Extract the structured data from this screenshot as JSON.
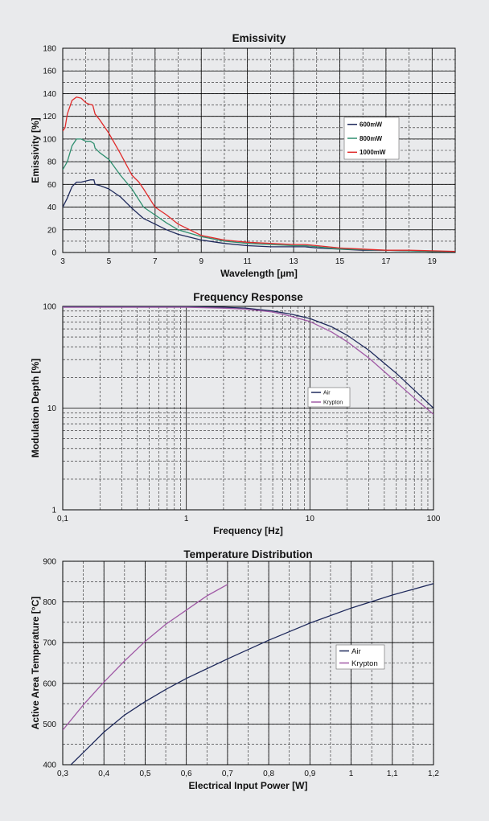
{
  "chart_data": [
    {
      "type": "line",
      "title": "Emissivity",
      "xlabel": "Wavelength [µm]",
      "ylabel": "Emissivity [%]",
      "xlim": [
        3,
        20
      ],
      "ylim": [
        0,
        180
      ],
      "xticks": [
        3,
        5,
        7,
        9,
        11,
        13,
        15,
        17,
        19
      ],
      "xticklabels": [
        "3",
        "5",
        "7",
        "9",
        "11",
        "13",
        "15",
        "17",
        "19"
      ],
      "yticks": [
        0,
        20,
        40,
        60,
        80,
        100,
        120,
        140,
        160,
        180
      ],
      "yticklabels": [
        "0",
        "20",
        "40",
        "60",
        "80",
        "100",
        "120",
        "140",
        "160",
        "180"
      ],
      "grid": true,
      "legend": "right",
      "series": [
        {
          "name": "600mW",
          "color": "#1f2a5c",
          "x": [
            3,
            3.2,
            3.4,
            3.6,
            3.8,
            4.0,
            4.2,
            4.35,
            4.4,
            4.6,
            5,
            5.5,
            6,
            6.5,
            7,
            7.5,
            8,
            9,
            10,
            11,
            12,
            13,
            13.5,
            14,
            15,
            16,
            17,
            18,
            19,
            20
          ],
          "y": [
            40,
            48,
            58,
            62,
            62,
            63,
            64,
            64,
            60,
            59,
            56,
            49,
            39,
            30,
            25,
            20,
            16,
            11,
            8,
            6,
            5,
            5,
            5,
            4,
            3,
            2,
            2,
            1.5,
            1,
            1
          ]
        },
        {
          "name": "800mW",
          "color": "#2f8f6f",
          "x": [
            3,
            3.2,
            3.4,
            3.6,
            3.8,
            4.0,
            4.2,
            4.35,
            4.4,
            4.6,
            5,
            5.5,
            6,
            6.5,
            7,
            7.5,
            8,
            9,
            10,
            11,
            12,
            13,
            13.5,
            14,
            15,
            16,
            17,
            18,
            19,
            20
          ],
          "y": [
            73,
            80,
            94,
            100,
            100,
            98,
            98,
            96,
            92,
            88,
            82,
            68,
            56,
            40,
            33,
            26,
            20,
            14,
            10,
            8,
            7,
            6,
            6,
            5,
            3,
            2.5,
            2,
            1.5,
            1,
            1
          ]
        },
        {
          "name": "1000mW",
          "color": "#e02a2a",
          "x": [
            3,
            3.1,
            3.2,
            3.4,
            3.6,
            3.8,
            4.0,
            4.1,
            4.3,
            4.4,
            4.6,
            5,
            5.5,
            6,
            6.3,
            6.5,
            7,
            7.5,
            8,
            9,
            10,
            11,
            12,
            13,
            13.5,
            14,
            15,
            16,
            17,
            18,
            19,
            20
          ],
          "y": [
            107,
            110,
            122,
            134,
            137,
            136,
            132,
            131,
            130,
            122,
            117,
            105,
            87,
            68,
            62,
            56,
            40,
            33,
            25,
            15,
            11,
            9,
            8,
            7,
            7,
            6,
            4,
            3,
            2,
            2,
            1.5,
            1
          ]
        }
      ]
    },
    {
      "type": "line",
      "title": "Frequency Response",
      "xlabel": "Frequency [Hz]",
      "ylabel": "Modulation Depth [%]",
      "xscale": "log",
      "yscale": "log",
      "xlim": [
        0.1,
        100
      ],
      "ylim": [
        1,
        100
      ],
      "xticks": [
        0.1,
        1,
        10,
        100
      ],
      "xticklabels": [
        "0,1",
        "1",
        "10",
        "100"
      ],
      "yticks": [
        1,
        10,
        100
      ],
      "yticklabels": [
        "1",
        "10",
        "100"
      ],
      "grid": true,
      "legend": "center",
      "series": [
        {
          "name": "Air",
          "color": "#1f2a5c",
          "x": [
            0.1,
            0.3,
            1,
            2,
            3,
            5,
            7,
            10,
            15,
            20,
            30,
            50,
            70,
            100
          ],
          "y": [
            99,
            99,
            99,
            98,
            96,
            90,
            84,
            76,
            63,
            52,
            37,
            22,
            15,
            10
          ]
        },
        {
          "name": "Krypton",
          "color": "#a05aa6",
          "x": [
            0.1,
            0.3,
            1,
            2,
            3,
            5,
            7,
            10,
            15,
            20,
            30,
            50,
            70,
            100
          ],
          "y": [
            98,
            98,
            98,
            96,
            94,
            88,
            80,
            71,
            56,
            45,
            31,
            18,
            12.5,
            8.7
          ]
        }
      ]
    },
    {
      "type": "line",
      "title": "Temperature Distribution",
      "xlabel": "Electrical Input Power [W]",
      "ylabel": "Active Area Temperature [°C]",
      "xlim": [
        0.3,
        1.2
      ],
      "ylim": [
        400,
        900
      ],
      "xticks": [
        0.3,
        0.4,
        0.5,
        0.6,
        0.7,
        0.8,
        0.9,
        1.0,
        1.1,
        1.2
      ],
      "xticklabels": [
        "0,3",
        "0,4",
        "0,5",
        "0,6",
        "0,7",
        "0,8",
        "0,9",
        "1",
        "1,1",
        "1,2"
      ],
      "yticks": [
        400,
        500,
        600,
        700,
        800,
        900
      ],
      "yticklabels": [
        "400",
        "500",
        "600",
        "700",
        "800",
        "900"
      ],
      "grid": true,
      "legend": "right",
      "series": [
        {
          "name": "Air",
          "color": "#1f2a5c",
          "x": [
            0.32,
            0.35,
            0.4,
            0.45,
            0.5,
            0.55,
            0.6,
            0.7,
            0.8,
            0.9,
            1.0,
            1.1,
            1.2
          ],
          "y": [
            400,
            430,
            480,
            522,
            555,
            585,
            612,
            660,
            706,
            748,
            785,
            817,
            845
          ]
        },
        {
          "name": "Krypton",
          "color": "#a05aa6",
          "x": [
            0.3,
            0.35,
            0.4,
            0.45,
            0.5,
            0.55,
            0.6,
            0.65,
            0.7
          ],
          "y": [
            485,
            547,
            603,
            655,
            703,
            745,
            780,
            815,
            843
          ]
        }
      ]
    }
  ]
}
